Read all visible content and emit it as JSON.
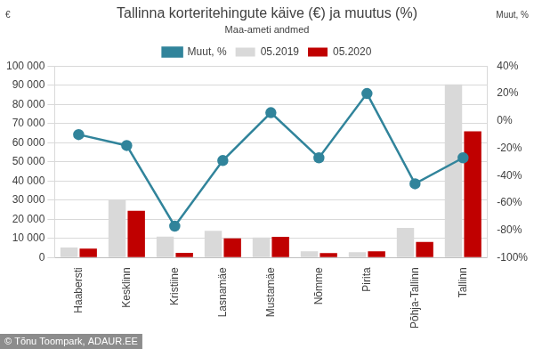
{
  "chart_data": {
    "type": "bar",
    "title": "Tallinna korteritehingute käive (€) ja muutus (%)",
    "subtitle": "Maa-ameti andmed",
    "y_label": "€",
    "y2_label": "Muut, %",
    "annotations": [
      "© Tõnu Toompark, ADAUR.EE"
    ],
    "categories": [
      "Haabersti",
      "Kesklinn",
      "Kristiine",
      "Lasnamäe",
      "Mustamäe",
      "Nõmme",
      "Pirita",
      "Põhja-Tallinn",
      "Tallinn"
    ],
    "series": [
      {
        "name": "05.2019",
        "type": "bar",
        "color": "#d9d9d9",
        "values": [
          5300,
          30000,
          11000,
          14000,
          10500,
          3300,
          2800,
          15500,
          90500
        ]
      },
      {
        "name": "05.2020",
        "type": "bar",
        "color": "#c00000",
        "values": [
          4700,
          24500,
          2500,
          10000,
          10800,
          2300,
          3300,
          8200,
          66000
        ]
      },
      {
        "name": "Muut, %",
        "type": "line",
        "color": "#31849b",
        "marker": "circle",
        "line_style": "solid",
        "axis": "y2",
        "values": [
          -10,
          -18,
          -77,
          -29,
          6,
          -27,
          20,
          -46,
          -27
        ]
      }
    ],
    "ylim": [
      0,
      100000
    ],
    "yticks": [
      0,
      {
        "value": 10000,
        "label": "10 000"
      },
      {
        "value": 20000,
        "label": "20 000"
      },
      {
        "value": 30000,
        "label": "30 000"
      },
      {
        "value": 40000,
        "label": "40 000"
      },
      {
        "value": 50000,
        "label": "50 000"
      },
      {
        "value": 60000,
        "label": "60 000"
      },
      {
        "value": 70000,
        "label": "70 000"
      },
      {
        "value": 80000,
        "label": "80 000"
      },
      {
        "value": 90000,
        "label": "90 000"
      },
      {
        "value": 100000,
        "label": "100 000"
      }
    ],
    "y2lim": [
      -100,
      40
    ],
    "y2ticks": [
      {
        "value": -100,
        "label": "-100%"
      },
      {
        "value": -80,
        "label": "-80%"
      },
      {
        "value": -60,
        "label": "-60%"
      },
      {
        "value": -40,
        "label": "-40%"
      },
      {
        "value": -20,
        "label": "-20%"
      },
      {
        "value": 0,
        "label": "0%"
      },
      {
        "value": 20,
        "label": "20%"
      },
      {
        "value": 40,
        "label": "40%"
      }
    ],
    "grid": true,
    "legend": "top"
  }
}
